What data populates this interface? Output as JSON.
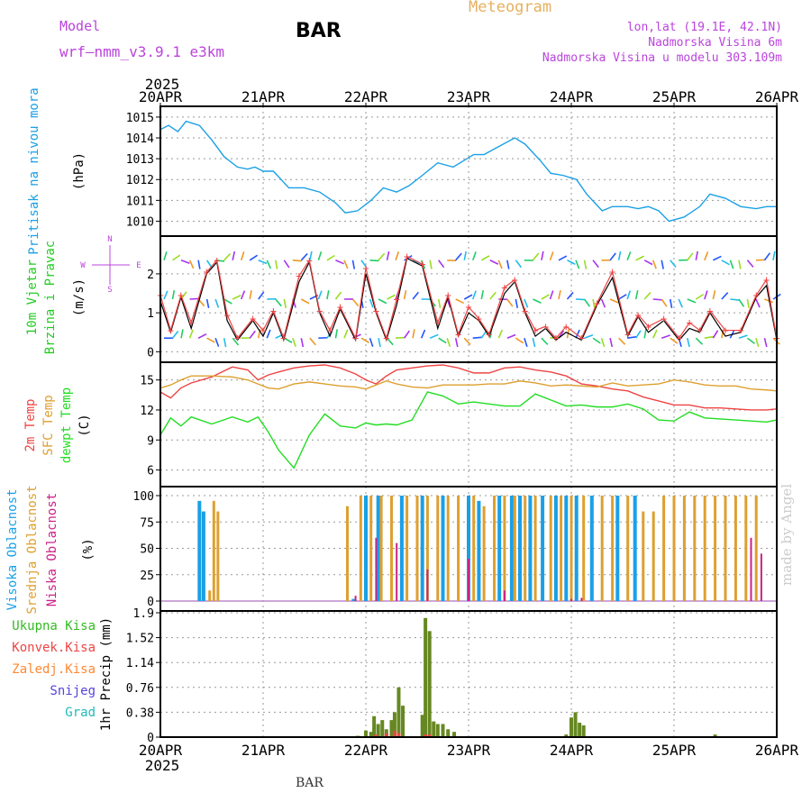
{
  "header": {
    "model_label": "Model",
    "model_name": "wrf—nmm_v3.9.1  e3km",
    "station": "BAR",
    "product": "Meteogram",
    "lonlat": "lon,lat (19.1E, 42.1N)",
    "altitude": "Nadmorska Visina 6m",
    "model_altitude": "Nadmorska Visina u modelu 303.109m",
    "footer_station": "BAR",
    "credit": "made by Angel"
  },
  "colors": {
    "pressure": "#1aa0e6",
    "wind_label": "#22cc22",
    "temp2m": "#ee4444",
    "sfc": "#dda030",
    "dew": "#22dd22",
    "high_cloud": "#1aa0e6",
    "mid_cloud": "#dda030",
    "low_cloud": "#cc2288",
    "total_precip": "#33bb22",
    "conv_precip": "#ee4444",
    "frz_precip": "#ff8833",
    "snow": "#5544dd",
    "hail": "#22bbbb",
    "gust": "#ee4444",
    "wind_dir_label": "#bb44dd",
    "ticks": "#000000"
  },
  "chart_data": [
    {
      "type": "line",
      "id": "pressure",
      "ylabel_name": "Pritisak na nivou mora",
      "ylabel_unit": "(hPa)",
      "ylim": [
        1009.5,
        1015.3
      ],
      "ticks": [
        "1010",
        "1011",
        "1012",
        "1013",
        "1014",
        "1015"
      ],
      "x_days": [
        0,
        0.08,
        0.17,
        0.25,
        0.38,
        0.5,
        0.62,
        0.75,
        0.85,
        0.92,
        1.0,
        1.1,
        1.25,
        1.4,
        1.55,
        1.7,
        1.8,
        1.92,
        2.05,
        2.17,
        2.3,
        2.42,
        2.55,
        2.7,
        2.85,
        2.95,
        3.05,
        3.15,
        3.3,
        3.45,
        3.55,
        3.7,
        3.8,
        3.92,
        4.05,
        4.15,
        4.3,
        4.4,
        4.55,
        4.65,
        4.75,
        4.85,
        4.95,
        5.1,
        5.25,
        5.35,
        5.5,
        5.65,
        5.8,
        5.9,
        6.0
      ],
      "values": [
        1014.4,
        1014.6,
        1014.3,
        1014.8,
        1014.6,
        1013.9,
        1013.1,
        1012.6,
        1012.5,
        1012.6,
        1012.4,
        1012.4,
        1011.6,
        1011.6,
        1011.4,
        1010.9,
        1010.4,
        1010.5,
        1011.0,
        1011.6,
        1011.4,
        1011.7,
        1012.2,
        1012.8,
        1012.6,
        1012.9,
        1013.2,
        1013.2,
        1013.6,
        1014.0,
        1013.7,
        1012.9,
        1012.3,
        1012.2,
        1012.0,
        1011.3,
        1010.5,
        1010.7,
        1010.7,
        1010.6,
        1010.7,
        1010.5,
        1010.0,
        1010.2,
        1010.7,
        1011.3,
        1011.1,
        1010.7,
        1010.6,
        1010.7,
        1010.7
      ]
    },
    {
      "type": "line",
      "id": "wind",
      "ylabel_name": "10m Vjetar",
      "ylabel_name2": "Brzina i Pravac",
      "ylabel_unit": "(m/s)",
      "dir_legend_top": "N",
      "dir_legend_w": "W",
      "dir_legend_e": "E",
      "dir_legend_s": "S",
      "ylim": [
        -0.2,
        2.9
      ],
      "ticks": [
        "0",
        "1",
        "2"
      ],
      "x_days": [
        0,
        0.1,
        0.2,
        0.3,
        0.45,
        0.55,
        0.65,
        0.75,
        0.9,
        1.0,
        1.1,
        1.2,
        1.35,
        1.45,
        1.55,
        1.65,
        1.75,
        1.9,
        2.0,
        2.1,
        2.2,
        2.3,
        2.4,
        2.55,
        2.7,
        2.8,
        2.9,
        3.0,
        3.1,
        3.2,
        3.35,
        3.45,
        3.55,
        3.65,
        3.75,
        3.85,
        3.95,
        4.1,
        4.25,
        4.4,
        4.55,
        4.65,
        4.75,
        4.9,
        5.05,
        5.15,
        5.25,
        5.35,
        5.5,
        5.65,
        5.8,
        5.9,
        6.0
      ],
      "values": [
        1.3,
        0.5,
        1.4,
        0.6,
        2.0,
        2.3,
        0.8,
        0.3,
        0.8,
        0.4,
        1.0,
        0.3,
        1.8,
        2.3,
        1.0,
        0.4,
        1.1,
        0.3,
        2.0,
        1.0,
        0.3,
        1.2,
        2.4,
        2.2,
        0.6,
        1.4,
        0.4,
        1.0,
        0.8,
        0.4,
        1.5,
        1.8,
        1.0,
        0.4,
        0.6,
        0.3,
        0.5,
        0.3,
        1.2,
        1.9,
        0.4,
        0.9,
        0.5,
        0.8,
        0.3,
        0.6,
        0.5,
        1.0,
        0.4,
        0.5,
        1.4,
        1.7,
        0.3
      ]
    },
    {
      "type": "line",
      "id": "temperature",
      "ylabel_name": "2m Temp",
      "ylabel_name2": "SFC Temp",
      "ylabel_name3": "dewpt Temp",
      "ylabel_unit": "(C)",
      "ylim": [
        4.7,
        16.5
      ],
      "ticks": [
        "6",
        "9",
        "12",
        "15"
      ],
      "x_days": [
        0,
        0.1,
        0.2,
        0.3,
        0.5,
        0.7,
        0.85,
        0.95,
        1.05,
        1.15,
        1.3,
        1.45,
        1.6,
        1.75,
        1.9,
        2.0,
        2.1,
        2.2,
        2.3,
        2.45,
        2.6,
        2.75,
        2.9,
        3.05,
        3.2,
        3.35,
        3.5,
        3.65,
        3.8,
        3.95,
        4.1,
        4.25,
        4.4,
        4.55,
        4.7,
        4.85,
        5.0,
        5.15,
        5.3,
        5.45,
        5.6,
        5.75,
        5.9,
        6.0
      ],
      "series": [
        {
          "name": "2m Temp",
          "values": [
            13.8,
            13.2,
            14.2,
            14.7,
            15.3,
            16.3,
            16.0,
            15.0,
            15.5,
            15.8,
            16.2,
            16.4,
            16.5,
            16.2,
            15.6,
            15.0,
            14.6,
            15.4,
            16.0,
            16.2,
            16.4,
            16.5,
            16.2,
            15.7,
            15.7,
            16.2,
            16.3,
            16.0,
            15.8,
            15.4,
            14.6,
            14.4,
            14.1,
            13.9,
            13.3,
            12.9,
            12.5,
            12.5,
            12.2,
            12.2,
            12.1,
            12.0,
            12.0,
            12.1
          ]
        },
        {
          "name": "SFC Temp",
          "values": [
            14.2,
            14.5,
            15.0,
            15.4,
            15.4,
            15.3,
            15.0,
            14.6,
            14.2,
            14.1,
            14.6,
            14.8,
            14.6,
            14.4,
            14.3,
            14.1,
            14.5,
            14.9,
            14.6,
            14.3,
            14.2,
            14.5,
            14.5,
            14.5,
            14.6,
            14.6,
            14.9,
            14.7,
            14.4,
            14.5,
            14.4,
            14.3,
            14.7,
            14.4,
            14.5,
            14.6,
            15.0,
            14.8,
            14.5,
            14.4,
            14.4,
            14.1,
            14.0,
            13.9
          ]
        },
        {
          "name": "dewpt Temp",
          "values": [
            9.5,
            11.2,
            10.4,
            11.3,
            10.6,
            11.3,
            10.8,
            11.3,
            9.8,
            8.0,
            6.2,
            9.5,
            11.6,
            10.4,
            10.2,
            10.7,
            10.5,
            10.6,
            10.5,
            11.0,
            13.8,
            13.4,
            12.6,
            12.8,
            12.6,
            12.4,
            12.4,
            13.6,
            13.0,
            12.4,
            12.5,
            12.3,
            12.3,
            12.6,
            12.1,
            11.0,
            10.9,
            11.8,
            11.2,
            11.1,
            11.0,
            10.9,
            10.8,
            11.0
          ]
        }
      ]
    },
    {
      "type": "bar",
      "id": "clouds",
      "ylabel_name": "Visoka Oblacnost",
      "ylabel_name2": "Srednja Oblacnost",
      "ylabel_name3": "Niska Oblacnost",
      "ylabel_unit": "(%)",
      "ylim": [
        0,
        100
      ],
      "ticks": [
        "0",
        "25",
        "50",
        "75",
        "100"
      ],
      "series": [
        {
          "name": "Visoka Oblacnost",
          "x_days": [
            0.38,
            0.42,
            1.88,
            2.0,
            2.12,
            2.35,
            2.55,
            2.75,
            3.0,
            3.1,
            3.3,
            3.42,
            3.5,
            3.6,
            3.72,
            3.85,
            3.95,
            4.05,
            4.2,
            4.45,
            4.62
          ],
          "values": [
            95,
            85,
            2,
            100,
            100,
            100,
            100,
            100,
            100,
            95,
            100,
            100,
            100,
            100,
            100,
            100,
            100,
            100,
            100,
            100,
            100
          ]
        },
        {
          "name": "Srednja Oblacnost",
          "x_days": [
            0.48,
            0.52,
            0.56,
            1.82,
            1.95,
            2.05,
            2.15,
            2.25,
            2.4,
            2.5,
            2.6,
            2.7,
            2.8,
            2.9,
            3.05,
            3.15,
            3.25,
            3.35,
            3.45,
            3.55,
            3.65,
            3.8,
            3.9,
            4.0,
            4.12,
            4.3,
            4.4,
            4.55,
            4.7,
            4.8,
            4.9,
            5.0,
            5.1,
            5.2,
            5.3,
            5.4,
            5.5,
            5.6,
            5.7,
            5.8
          ],
          "values": [
            10,
            95,
            85,
            90,
            100,
            100,
            100,
            100,
            100,
            100,
            100,
            100,
            100,
            100,
            100,
            90,
            100,
            100,
            100,
            100,
            100,
            100,
            100,
            100,
            100,
            100,
            100,
            100,
            85,
            85,
            100,
            100,
            100,
            100,
            100,
            100,
            100,
            100,
            100,
            100
          ]
        },
        {
          "name": "Niska Oblacnost",
          "x_days": [
            1.9,
            2.1,
            2.3,
            2.6,
            3.0,
            3.35,
            4.0,
            4.1,
            5.75,
            5.85
          ],
          "values": [
            5,
            60,
            55,
            30,
            40,
            10,
            2,
            3,
            60,
            45
          ]
        }
      ]
    },
    {
      "type": "bar",
      "id": "precip",
      "ylabel_name": "1hr Precip",
      "ylabel_unit": "(mm)",
      "ylim": [
        0,
        1.9
      ],
      "ticks": [
        "0",
        "0.38",
        "0.76",
        "1.14",
        "1.52",
        "1.9"
      ],
      "legend": [
        "Ukupna Kisa",
        "Konvek.Kisa",
        "Zaledj.Kisa",
        "Snijeg",
        "Grad"
      ],
      "series": [
        {
          "name": "Ukupna Kisa",
          "x_days": [
            1.92,
            2.0,
            2.05,
            2.08,
            2.12,
            2.16,
            2.2,
            2.25,
            2.28,
            2.32,
            2.36,
            2.55,
            2.58,
            2.62,
            2.66,
            2.7,
            2.75,
            2.8,
            2.86,
            3.95,
            4.0,
            4.04,
            4.08,
            4.12,
            5.4
          ],
          "values": [
            0.02,
            0.1,
            0.08,
            0.32,
            0.2,
            0.26,
            0.12,
            0.26,
            0.38,
            0.76,
            0.48,
            0.34,
            1.82,
            1.62,
            0.24,
            0.2,
            0.2,
            0.12,
            0.08,
            0.04,
            0.3,
            0.38,
            0.22,
            0.18,
            0.04
          ]
        },
        {
          "name": "Konvek.Kisa",
          "x_days": [
            2.1,
            2.2,
            2.28,
            2.32,
            2.58,
            2.62
          ],
          "values": [
            0.04,
            0.06,
            0.1,
            0.06,
            0.04,
            0.04
          ]
        }
      ],
      "x_labels_top": [
        "20APR",
        "21APR",
        "22APR",
        "23APR",
        "24APR",
        "25APR",
        "26APR"
      ],
      "x_labels_bottom": [
        "20APR",
        "21APR",
        "22APR",
        "23APR",
        "24APR",
        "25APR",
        "26APR"
      ],
      "year": "2025"
    }
  ]
}
